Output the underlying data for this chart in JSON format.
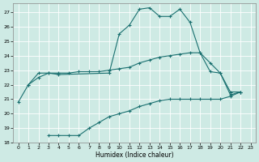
{
  "xlabel": "Humidex (Indice chaleur)",
  "bg_color": "#ceeae4",
  "grid_color": "#ffffff",
  "line_color": "#1a7070",
  "xlim": [
    -0.5,
    23.5
  ],
  "ylim": [
    18,
    27.6
  ],
  "yticks": [
    18,
    19,
    20,
    21,
    22,
    23,
    24,
    25,
    26,
    27
  ],
  "xticks": [
    0,
    1,
    2,
    3,
    4,
    5,
    6,
    7,
    8,
    9,
    10,
    11,
    12,
    13,
    14,
    15,
    16,
    17,
    18,
    19,
    20,
    21,
    22,
    23
  ],
  "series": [
    {
      "x": [
        0,
        1,
        2,
        3,
        4,
        9,
        10,
        11,
        12,
        13,
        14,
        15,
        16,
        17,
        18,
        19,
        20,
        21,
        22
      ],
      "y": [
        20.8,
        22.0,
        22.8,
        22.8,
        22.7,
        22.8,
        25.5,
        26.1,
        27.2,
        27.3,
        26.7,
        26.7,
        27.2,
        26.3,
        24.2,
        22.9,
        22.8,
        21.3,
        21.5
      ]
    },
    {
      "x": [
        1,
        2,
        3,
        4,
        5,
        6,
        7,
        8,
        9,
        10,
        11,
        12,
        13,
        14,
        15,
        16,
        17,
        18,
        19,
        20,
        21,
        22
      ],
      "y": [
        22.0,
        22.5,
        22.8,
        22.8,
        22.8,
        22.9,
        22.9,
        22.9,
        23.0,
        23.1,
        23.2,
        23.5,
        23.7,
        23.9,
        24.0,
        24.1,
        24.2,
        24.2,
        23.5,
        22.8,
        21.5,
        21.5
      ]
    },
    {
      "x": [
        3,
        4,
        5,
        6,
        7,
        8,
        9,
        10,
        11,
        12,
        13,
        14,
        15,
        16,
        17,
        18,
        19,
        20,
        21,
        22
      ],
      "y": [
        18.5,
        18.5,
        18.5,
        18.5,
        19.0,
        19.4,
        19.8,
        20.0,
        20.2,
        20.5,
        20.7,
        20.9,
        21.0,
        21.0,
        21.0,
        21.0,
        21.0,
        21.0,
        21.2,
        21.5
      ]
    }
  ]
}
